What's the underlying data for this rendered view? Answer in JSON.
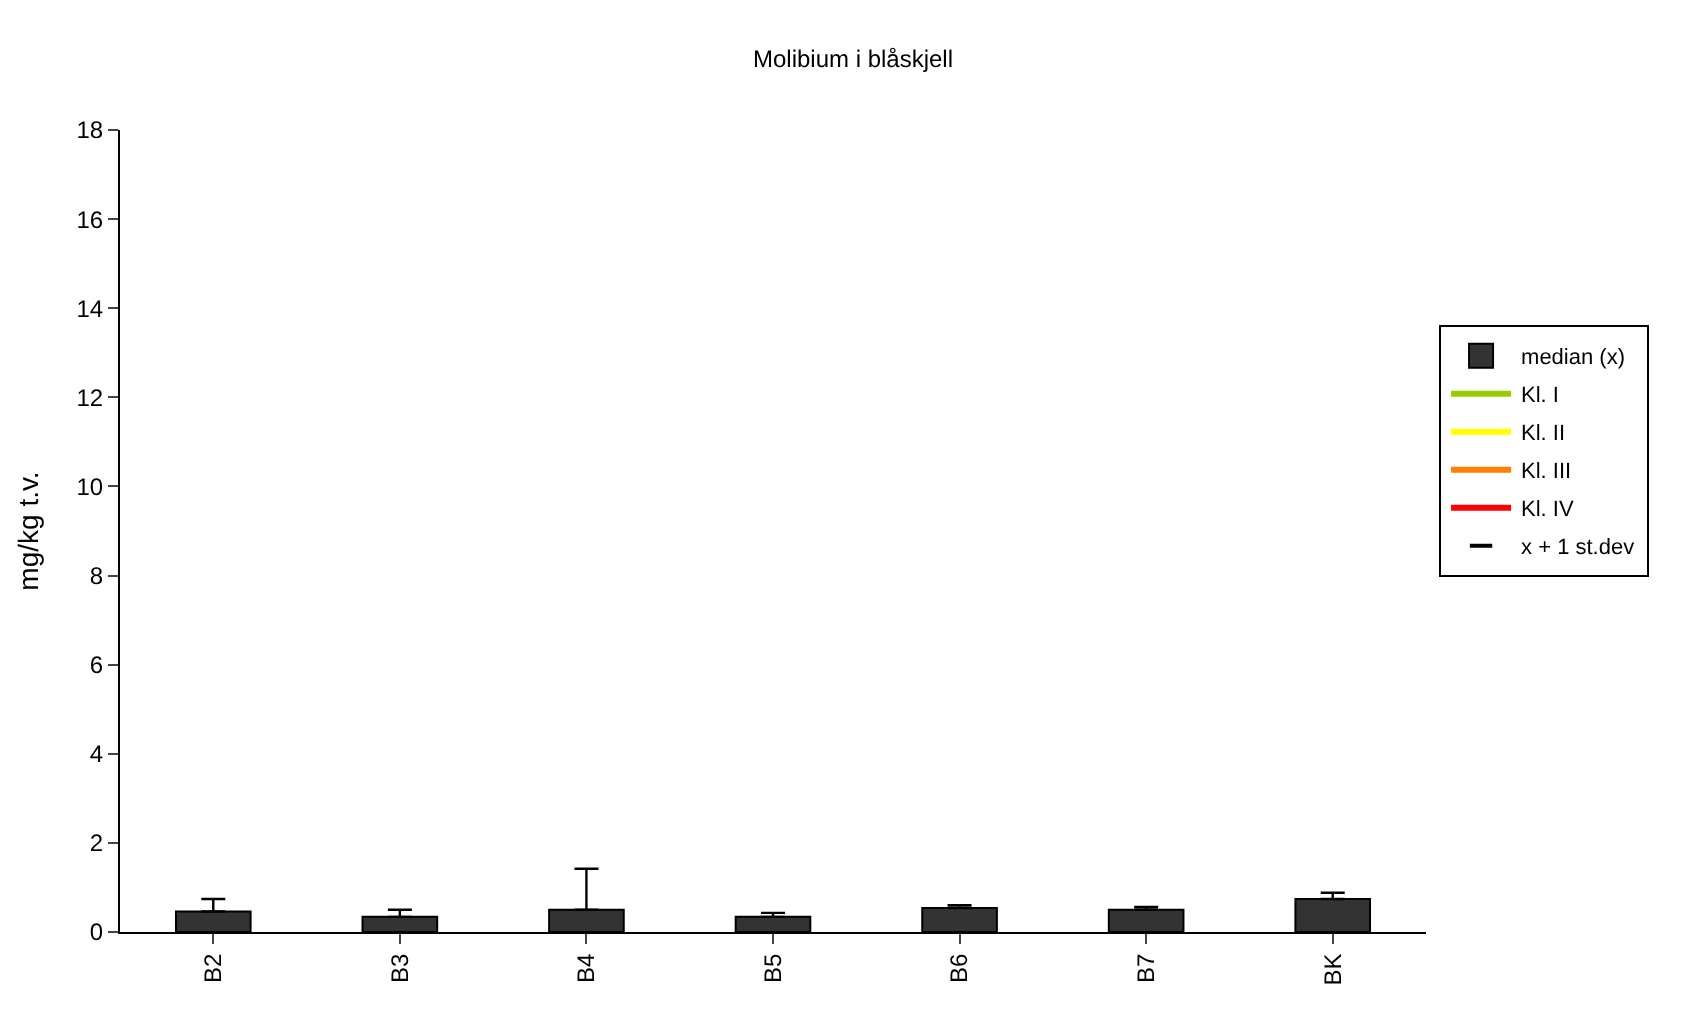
{
  "chart_data": {
    "type": "bar",
    "title": "Molibium i blåskjell",
    "ylabel": "mg/kg t.v.",
    "categories": [
      "B2",
      "B3",
      "B4",
      "B5",
      "B6",
      "B7",
      "BK"
    ],
    "series": [
      {
        "name": "median (x)",
        "color": "#333333",
        "values": [
          0.46,
          0.34,
          0.5,
          0.34,
          0.54,
          0.5,
          0.74
        ],
        "errors": [
          [
            0.46,
            0.74
          ],
          [
            0.34,
            0.5
          ],
          [
            0.5,
            1.42
          ],
          [
            0.34,
            0.43
          ],
          [
            0.54,
            0.6
          ],
          [
            0.5,
            0.56
          ],
          [
            0.74,
            0.88
          ]
        ]
      },
      {
        "name": "Kl. I",
        "type": "line",
        "color": "#99cc00",
        "values": [
          null,
          null,
          null,
          null,
          null,
          null,
          null
        ]
      },
      {
        "name": "Kl. II",
        "type": "line",
        "color": "#ffff00",
        "values": [
          null,
          null,
          null,
          null,
          null,
          null,
          null
        ]
      },
      {
        "name": "Kl. III",
        "type": "line",
        "color": "#ff8000",
        "values": [
          null,
          null,
          null,
          null,
          null,
          null,
          null
        ]
      },
      {
        "name": "Kl. IV",
        "type": "line",
        "color": "#ff0000",
        "values": [
          null,
          null,
          null,
          null,
          null,
          null,
          null
        ]
      },
      {
        "name": "x + 1 st.dev",
        "type": "scatter",
        "marker": "dash",
        "color": "#000000",
        "values": [
          null,
          null,
          null,
          null,
          null,
          null,
          null
        ]
      }
    ],
    "ylim": [
      0,
      18
    ],
    "yticks": [
      0,
      2,
      4,
      6,
      8,
      10,
      12,
      14,
      16,
      18
    ],
    "legend": "right"
  }
}
